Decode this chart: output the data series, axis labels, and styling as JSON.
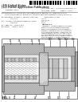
{
  "background_color": "#ffffff",
  "text_color": "#222222",
  "dark": "#111111",
  "gray1": "#c8c8c8",
  "gray2": "#b0b0b0",
  "gray3": "#e0e0e0",
  "gray4": "#d8d8d8",
  "gray5": "#a8a8a8",
  "line_color": "#333333",
  "barcode_color": "#000000"
}
